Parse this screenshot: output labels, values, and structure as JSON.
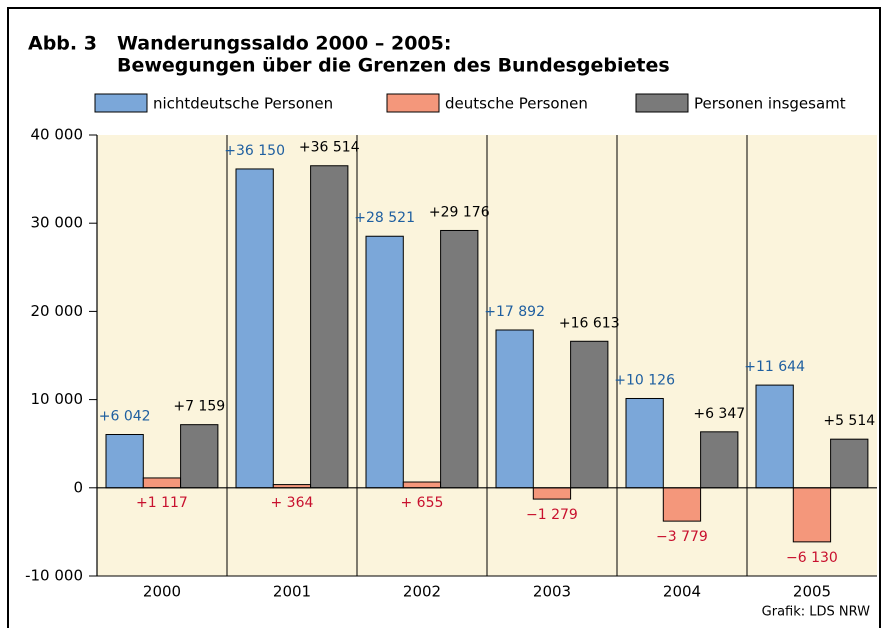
{
  "chart_data": {
    "type": "bar",
    "figure_label": "Abb. 3",
    "title": "Wanderungssaldo 2000 – 2005:",
    "subtitle": "Bewegungen über die Grenzen des Bundesgebietes",
    "source": "Grafik: LDS NRW",
    "categories": [
      "2000",
      "2001",
      "2002",
      "2003",
      "2004",
      "2005"
    ],
    "series": [
      {
        "name": "nichtdeutsche Personen",
        "color": "#7ba7d9",
        "label_color": "#1f5fa0",
        "values": [
          6042,
          36150,
          28521,
          17892,
          10126,
          11644
        ],
        "value_labels": [
          "+6 042",
          "+36 150",
          "+28 521",
          "+17 892",
          "+10 126",
          "+11 644"
        ]
      },
      {
        "name": "deutsche Personen",
        "color": "#f4977b",
        "label_color": "#c8102e",
        "values": [
          1117,
          364,
          655,
          -1279,
          -3779,
          -6130
        ],
        "value_labels": [
          "+1 117",
          "+ 364",
          "+ 655",
          "−1 279",
          "−3 779",
          "−6 130"
        ]
      },
      {
        "name": "Personen insgesamt",
        "color": "#7a7a7a",
        "label_color": "#000000",
        "values": [
          7159,
          36514,
          29176,
          16613,
          6347,
          5514
        ],
        "value_labels": [
          "+7 159",
          "+36 514",
          "+29 176",
          "+16 613",
          "+6 347",
          "+5 514"
        ]
      }
    ],
    "ylim": [
      -10000,
      40000
    ],
    "yticks": [
      {
        "value": -10000,
        "label": "-10 000"
      },
      0,
      {
        "value": 10000,
        "label": "10 000"
      },
      {
        "value": 20000,
        "label": "20 000"
      },
      {
        "value": 30000,
        "label": "30 000"
      },
      {
        "value": 40000,
        "label": "40 000"
      }
    ],
    "grid": false,
    "legend": "top",
    "background": "#fbf4dc"
  }
}
